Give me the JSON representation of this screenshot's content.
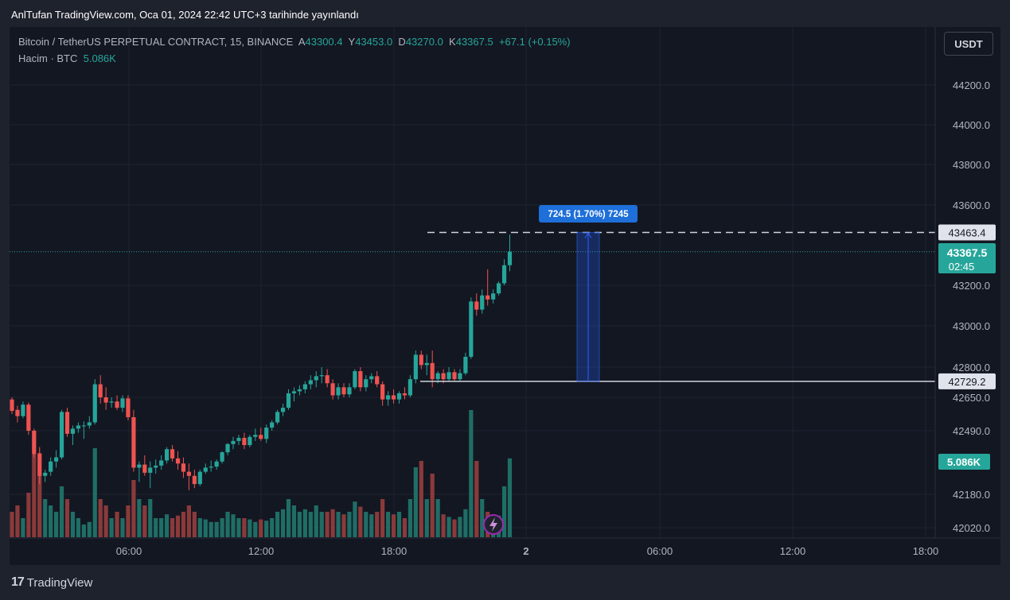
{
  "header": {
    "published": "AnlTufan TradingView.com, Oca 01, 2024 22:42 UTC+3 tarihinde yayınlandı"
  },
  "symbol": {
    "name": "Bitcoin / TetherUS PERPETUAL CONTRACT, 15, BINANCE",
    "open_label": "A",
    "open": "43300.4",
    "high_label": "Y",
    "high": "43453.0",
    "low_label": "D",
    "low": "43270.0",
    "close_label": "K",
    "close": "43367.5",
    "change": "+67.1 (+0.15%)"
  },
  "volume_legend": {
    "label": "Hacim · BTC",
    "value": "5.086K"
  },
  "currency_button": "USDT",
  "footer": {
    "logo_mark": "17",
    "logo_text": "TradingView"
  },
  "colors": {
    "up": "#26a69a",
    "down": "#ef5350",
    "background": "#131722",
    "measure": "#2962ff"
  },
  "chart_data": {
    "type": "candlestick",
    "interval": "15m",
    "price_axis_ticks": [
      "44200.0",
      "44000.0",
      "43800.0",
      "43600.0",
      "43200.0",
      "43000.0",
      "42800.0",
      "42650.0",
      "42490.0",
      "42180.0",
      "42020.0"
    ],
    "time_axis_ticks": [
      "06:00",
      "12:00",
      "18:00",
      "2",
      "06:00",
      "12:00",
      "18:00"
    ],
    "price_range": [
      42000,
      44400
    ],
    "current_price": {
      "value": "43367.5",
      "countdown": "02:45"
    },
    "volume_badge": "5.086K",
    "level_high": {
      "value": "43463.4"
    },
    "level_low": {
      "value": "42729.2"
    },
    "measure_label": "724.5 (1.70%) 7245",
    "grid": true,
    "candles": [
      {
        "o": 42640,
        "h": 42650,
        "l": 42570,
        "c": 42585,
        "v": 0.2
      },
      {
        "o": 42590,
        "h": 42610,
        "l": 42530,
        "c": 42560,
        "v": 0.25
      },
      {
        "o": 42560,
        "h": 42630,
        "l": 42550,
        "c": 42615,
        "v": 0.15
      },
      {
        "o": 42615,
        "h": 42625,
        "l": 42470,
        "c": 42490,
        "v": 0.35
      },
      {
        "o": 42490,
        "h": 42500,
        "l": 42360,
        "c": 42375,
        "v": 0.65
      },
      {
        "o": 42380,
        "h": 42410,
        "l": 42230,
        "c": 42270,
        "v": 0.5
      },
      {
        "o": 42270,
        "h": 42300,
        "l": 42240,
        "c": 42285,
        "v": 0.3
      },
      {
        "o": 42290,
        "h": 42360,
        "l": 42270,
        "c": 42340,
        "v": 0.25
      },
      {
        "o": 42340,
        "h": 42395,
        "l": 42310,
        "c": 42360,
        "v": 0.2
      },
      {
        "o": 42360,
        "h": 42590,
        "l": 42350,
        "c": 42580,
        "v": 0.4
      },
      {
        "o": 42580,
        "h": 42600,
        "l": 42460,
        "c": 42475,
        "v": 0.3
      },
      {
        "o": 42475,
        "h": 42515,
        "l": 42420,
        "c": 42500,
        "v": 0.2
      },
      {
        "o": 42500,
        "h": 42530,
        "l": 42480,
        "c": 42515,
        "v": 0.15
      },
      {
        "o": 42515,
        "h": 42535,
        "l": 42450,
        "c": 42515,
        "v": 0.1
      },
      {
        "o": 42515,
        "h": 42560,
        "l": 42500,
        "c": 42530,
        "v": 0.12
      },
      {
        "o": 42530,
        "h": 42740,
        "l": 42520,
        "c": 42715,
        "v": 0.7
      },
      {
        "o": 42715,
        "h": 42760,
        "l": 42620,
        "c": 42650,
        "v": 0.3
      },
      {
        "o": 42650,
        "h": 42700,
        "l": 42590,
        "c": 42625,
        "v": 0.25
      },
      {
        "o": 42625,
        "h": 42650,
        "l": 42600,
        "c": 42630,
        "v": 0.15
      },
      {
        "o": 42630,
        "h": 42660,
        "l": 42590,
        "c": 42600,
        "v": 0.2
      },
      {
        "o": 42600,
        "h": 42660,
        "l": 42580,
        "c": 42645,
        "v": 0.15
      },
      {
        "o": 42645,
        "h": 42660,
        "l": 42540,
        "c": 42555,
        "v": 0.25
      },
      {
        "o": 42555,
        "h": 42590,
        "l": 42290,
        "c": 42310,
        "v": 0.45
      },
      {
        "o": 42310,
        "h": 42340,
        "l": 42240,
        "c": 42325,
        "v": 0.3
      },
      {
        "o": 42325,
        "h": 42370,
        "l": 42270,
        "c": 42285,
        "v": 0.25
      },
      {
        "o": 42285,
        "h": 42340,
        "l": 42210,
        "c": 42310,
        "v": 0.3
      },
      {
        "o": 42310,
        "h": 42350,
        "l": 42280,
        "c": 42320,
        "v": 0.15
      },
      {
        "o": 42320,
        "h": 42370,
        "l": 42300,
        "c": 42345,
        "v": 0.15
      },
      {
        "o": 42345,
        "h": 42410,
        "l": 42330,
        "c": 42400,
        "v": 0.18
      },
      {
        "o": 42400,
        "h": 42420,
        "l": 42340,
        "c": 42355,
        "v": 0.15
      },
      {
        "o": 42355,
        "h": 42390,
        "l": 42300,
        "c": 42330,
        "v": 0.17
      },
      {
        "o": 42330,
        "h": 42360,
        "l": 42260,
        "c": 42290,
        "v": 0.2
      },
      {
        "o": 42290,
        "h": 42330,
        "l": 42200,
        "c": 42270,
        "v": 0.25
      },
      {
        "o": 42270,
        "h": 42300,
        "l": 42210,
        "c": 42230,
        "v": 0.2
      },
      {
        "o": 42230,
        "h": 42300,
        "l": 42220,
        "c": 42290,
        "v": 0.15
      },
      {
        "o": 42290,
        "h": 42330,
        "l": 42280,
        "c": 42310,
        "v": 0.14
      },
      {
        "o": 42310,
        "h": 42345,
        "l": 42290,
        "c": 42315,
        "v": 0.12
      },
      {
        "o": 42315,
        "h": 42350,
        "l": 42300,
        "c": 42340,
        "v": 0.12
      },
      {
        "o": 42340,
        "h": 42390,
        "l": 42330,
        "c": 42385,
        "v": 0.15
      },
      {
        "o": 42385,
        "h": 42430,
        "l": 42370,
        "c": 42425,
        "v": 0.2
      },
      {
        "o": 42425,
        "h": 42460,
        "l": 42400,
        "c": 42440,
        "v": 0.18
      },
      {
        "o": 42440,
        "h": 42470,
        "l": 42420,
        "c": 42455,
        "v": 0.15
      },
      {
        "o": 42455,
        "h": 42480,
        "l": 42400,
        "c": 42420,
        "v": 0.15
      },
      {
        "o": 42420,
        "h": 42470,
        "l": 42410,
        "c": 42460,
        "v": 0.14
      },
      {
        "o": 42460,
        "h": 42500,
        "l": 42440,
        "c": 42470,
        "v": 0.12
      },
      {
        "o": 42470,
        "h": 42505,
        "l": 42440,
        "c": 42450,
        "v": 0.14
      },
      {
        "o": 42450,
        "h": 42520,
        "l": 42430,
        "c": 42505,
        "v": 0.13
      },
      {
        "o": 42505,
        "h": 42540,
        "l": 42490,
        "c": 42530,
        "v": 0.15
      },
      {
        "o": 42530,
        "h": 42590,
        "l": 42520,
        "c": 42580,
        "v": 0.2
      },
      {
        "o": 42580,
        "h": 42620,
        "l": 42560,
        "c": 42600,
        "v": 0.22
      },
      {
        "o": 42600,
        "h": 42690,
        "l": 42590,
        "c": 42670,
        "v": 0.3
      },
      {
        "o": 42670,
        "h": 42700,
        "l": 42630,
        "c": 42680,
        "v": 0.25
      },
      {
        "o": 42680,
        "h": 42710,
        "l": 42660,
        "c": 42690,
        "v": 0.2
      },
      {
        "o": 42690,
        "h": 42730,
        "l": 42670,
        "c": 42715,
        "v": 0.22
      },
      {
        "o": 42715,
        "h": 42760,
        "l": 42690,
        "c": 42735,
        "v": 0.2
      },
      {
        "o": 42735,
        "h": 42780,
        "l": 42700,
        "c": 42755,
        "v": 0.25
      },
      {
        "o": 42755,
        "h": 42800,
        "l": 42720,
        "c": 42760,
        "v": 0.2
      },
      {
        "o": 42760,
        "h": 42790,
        "l": 42700,
        "c": 42720,
        "v": 0.2
      },
      {
        "o": 42720,
        "h": 42740,
        "l": 42640,
        "c": 42660,
        "v": 0.22
      },
      {
        "o": 42660,
        "h": 42720,
        "l": 42640,
        "c": 42700,
        "v": 0.2
      },
      {
        "o": 42700,
        "h": 42720,
        "l": 42650,
        "c": 42665,
        "v": 0.18
      },
      {
        "o": 42665,
        "h": 42720,
        "l": 42650,
        "c": 42700,
        "v": 0.2
      },
      {
        "o": 42700,
        "h": 42790,
        "l": 42690,
        "c": 42780,
        "v": 0.28
      },
      {
        "o": 42780,
        "h": 42800,
        "l": 42680,
        "c": 42700,
        "v": 0.24
      },
      {
        "o": 42700,
        "h": 42760,
        "l": 42680,
        "c": 42740,
        "v": 0.2
      },
      {
        "o": 42740,
        "h": 42770,
        "l": 42720,
        "c": 42755,
        "v": 0.18
      },
      {
        "o": 42755,
        "h": 42780,
        "l": 42700,
        "c": 42715,
        "v": 0.2
      },
      {
        "o": 42715,
        "h": 42730,
        "l": 42610,
        "c": 42640,
        "v": 0.3
      },
      {
        "o": 42640,
        "h": 42680,
        "l": 42610,
        "c": 42660,
        "v": 0.2
      },
      {
        "o": 42660,
        "h": 42690,
        "l": 42620,
        "c": 42640,
        "v": 0.18
      },
      {
        "o": 42640,
        "h": 42680,
        "l": 42620,
        "c": 42670,
        "v": 0.2
      },
      {
        "o": 42670,
        "h": 42700,
        "l": 42640,
        "c": 42660,
        "v": 0.15
      },
      {
        "o": 42660,
        "h": 42760,
        "l": 42650,
        "c": 42740,
        "v": 0.3
      },
      {
        "o": 42740,
        "h": 42880,
        "l": 42720,
        "c": 42860,
        "v": 0.55
      },
      {
        "o": 42860,
        "h": 42880,
        "l": 42790,
        "c": 42810,
        "v": 0.6
      },
      {
        "o": 42810,
        "h": 42860,
        "l": 42760,
        "c": 42820,
        "v": 0.3
      },
      {
        "o": 42820,
        "h": 42880,
        "l": 42700,
        "c": 42740,
        "v": 0.5
      },
      {
        "o": 42740,
        "h": 42780,
        "l": 42720,
        "c": 42770,
        "v": 0.3
      },
      {
        "o": 42770,
        "h": 42790,
        "l": 42720,
        "c": 42740,
        "v": 0.18
      },
      {
        "o": 42740,
        "h": 42800,
        "l": 42730,
        "c": 42775,
        "v": 0.16
      },
      {
        "o": 42775,
        "h": 42790,
        "l": 42730,
        "c": 42740,
        "v": 0.14
      },
      {
        "o": 42740,
        "h": 42790,
        "l": 42730,
        "c": 42770,
        "v": 0.16
      },
      {
        "o": 42770,
        "h": 42870,
        "l": 42760,
        "c": 42850,
        "v": 0.22
      },
      {
        "o": 42850,
        "h": 43140,
        "l": 42840,
        "c": 43120,
        "v": 1.0
      },
      {
        "o": 43120,
        "h": 43160,
        "l": 43050,
        "c": 43080,
        "v": 0.6
      },
      {
        "o": 43080,
        "h": 43180,
        "l": 43060,
        "c": 43150,
        "v": 0.3
      },
      {
        "o": 43150,
        "h": 43280,
        "l": 43100,
        "c": 43130,
        "v": 0.2
      },
      {
        "o": 43130,
        "h": 43180,
        "l": 43110,
        "c": 43160,
        "v": 0.15
      },
      {
        "o": 43160,
        "h": 43220,
        "l": 43150,
        "c": 43210,
        "v": 0.17
      },
      {
        "o": 43210,
        "h": 43330,
        "l": 43200,
        "c": 43300,
        "v": 0.4
      },
      {
        "o": 43300,
        "h": 43453,
        "l": 43270,
        "c": 43367.5,
        "v": 0.62
      }
    ]
  }
}
